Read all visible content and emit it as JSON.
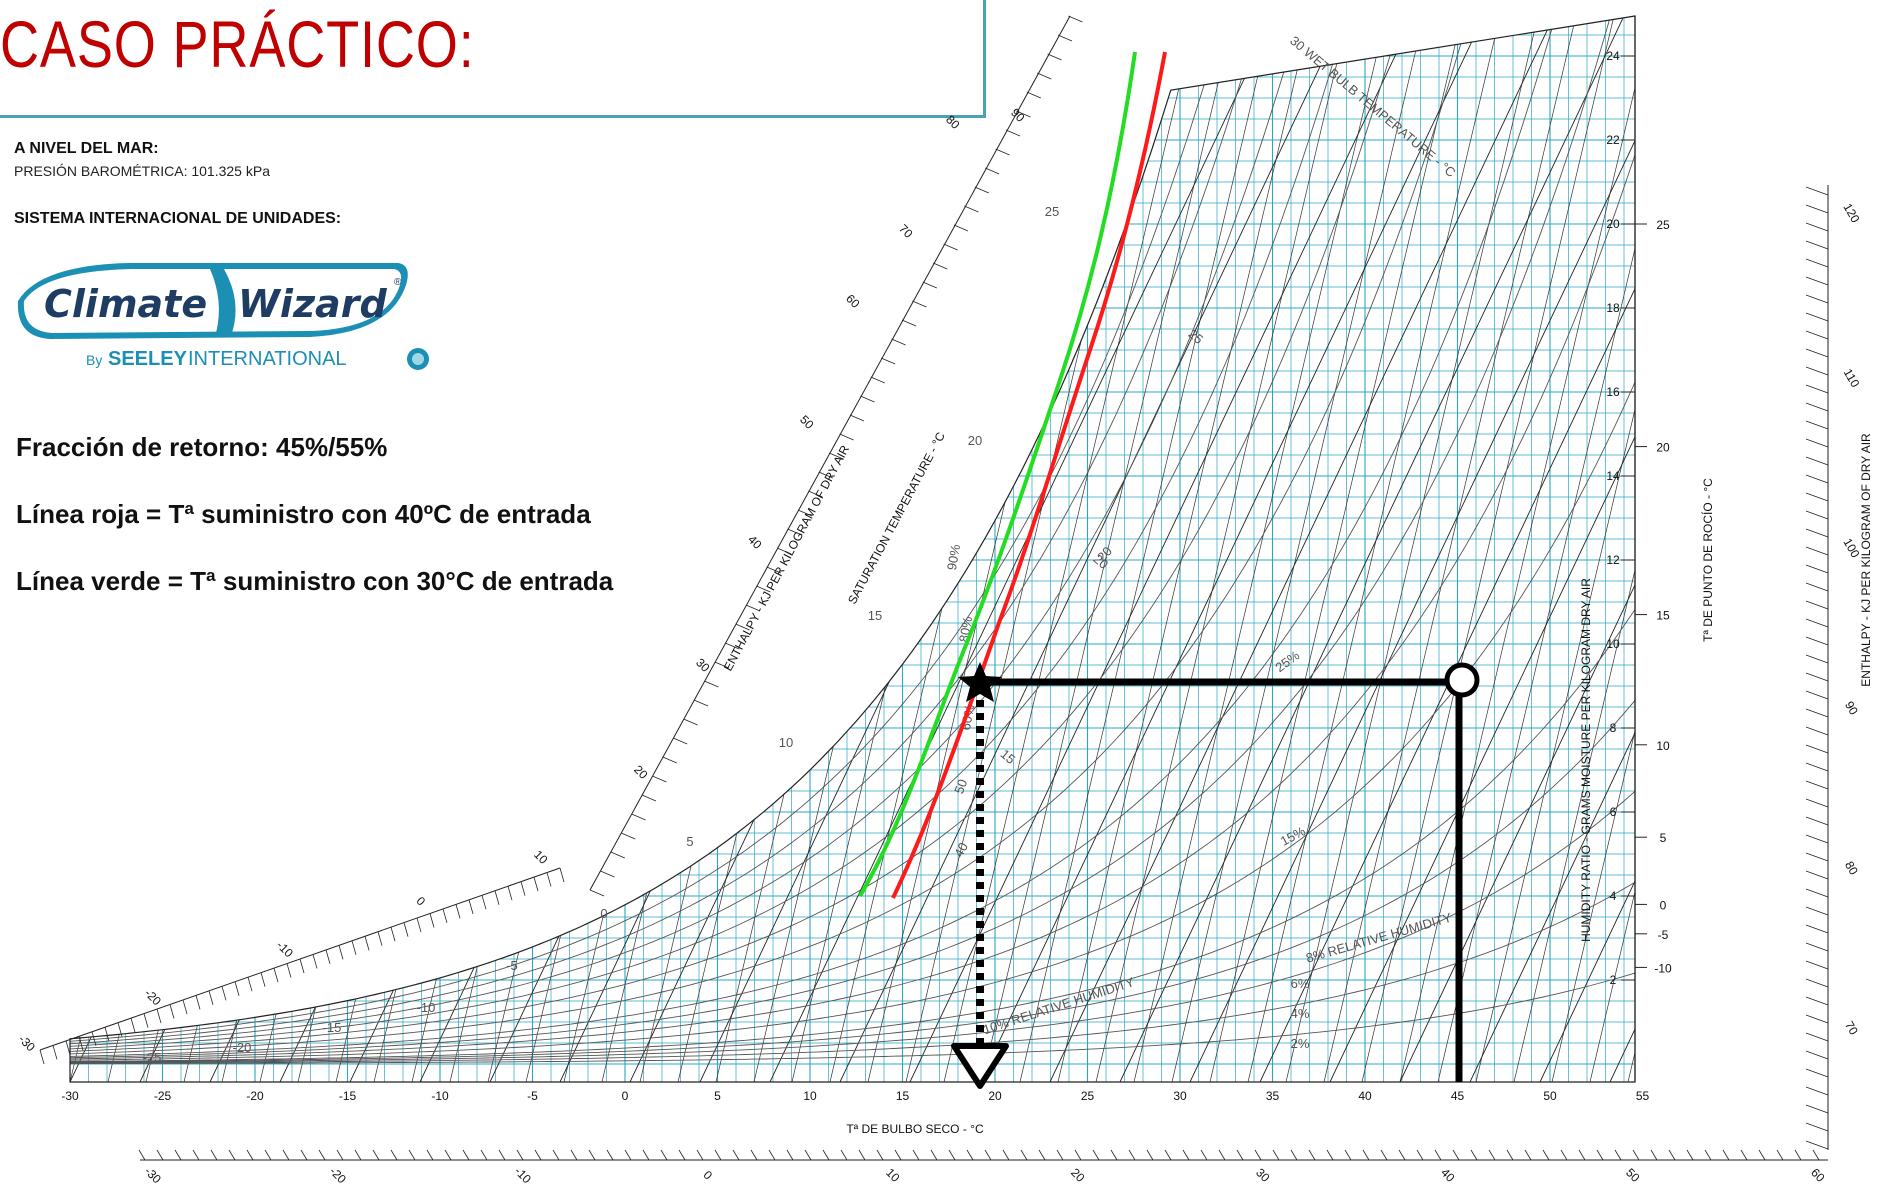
{
  "title": "CASO PRÁCTICO:",
  "info": {
    "sea_level": "A NIVEL DEL MAR:",
    "pressure": "PRESIÓN BAROMÉTRICA: 101.325 kPa",
    "units": "SISTEMA INTERNACIONAL DE UNIDADES:"
  },
  "logo": {
    "word1": "Climate",
    "word2": "Wizard",
    "reg": "®",
    "by": "By",
    "company_bold": "SEELEY",
    "company_rest": "INTERNATIONAL"
  },
  "notes": {
    "return_fraction": "Fracción de retorno: 45%/55%",
    "red_line": "Línea roja = Tª suministro con 40ºC de entrada",
    "green_line": "Línea verde = Tª suministro con 30°C de entrada"
  },
  "chart": {
    "x_axis_title": "Tª DE BULBO SECO - °C",
    "x_ticks": [
      "-30",
      "-25",
      "-20",
      "-15",
      "-10",
      "-5",
      "0",
      "5",
      "10",
      "15",
      "20",
      "25",
      "30",
      "35",
      "40",
      "45",
      "50",
      "55"
    ],
    "humidity_ratio_title": "HUMIDITY RATIO - GRAMS MOISTURE PER KILOGRAM DRY AIR",
    "humidity_ticks": [
      "2",
      "4",
      "6",
      "8",
      "10",
      "12",
      "14",
      "16",
      "18",
      "20",
      "22",
      "24"
    ],
    "dew_point_title": "Tª DE PUNTO DE ROCÍO - °C",
    "dew_point_ticks": [
      "-10",
      "-5",
      "0",
      "5",
      "10",
      "15",
      "20",
      "25"
    ],
    "enthalpy_title_right": "ENTHALPY - KJ PER KILOGRAM OF DRY AIR",
    "enthalpy_right_ticks": [
      "70",
      "80",
      "90",
      "100",
      "110",
      "120"
    ],
    "enthalpy_bottom_ticks": [
      "-30",
      "-20",
      "-10",
      "0",
      "10",
      "20",
      "30",
      "40",
      "50",
      "60"
    ],
    "enthalpy_title_left": "ENTHALPY - KJ PER KILOGRAM OF DRY AIR",
    "enthalpy_left_ticks": [
      "-30",
      "-20",
      "-10",
      "0",
      "10",
      "20",
      "30",
      "40",
      "50",
      "60",
      "70",
      "80",
      "90"
    ],
    "saturation_title": "SATURATION TEMPERATURE - °C",
    "saturation_labels": [
      "-25",
      "-20",
      "-15",
      "-10",
      "-5",
      "0",
      "5",
      "10",
      "15",
      "20",
      "25"
    ],
    "wet_bulb_title": "30 WET BULB TEMPERATURE - °C",
    "rh_labels": [
      "2%",
      "4%",
      "6%",
      "8% RELATIVE HUMIDITY",
      "10% RELATIVE HUMIDITY",
      "15%",
      "25%",
      "20",
      "40",
      "50",
      "60%",
      "80%",
      "90%"
    ],
    "wb_labels": [
      "25",
      "20",
      "15"
    ],
    "colors": {
      "grid": "#2aa7c2",
      "red": "#ff1a1a",
      "green": "#22dd22",
      "black": "#000000"
    }
  }
}
